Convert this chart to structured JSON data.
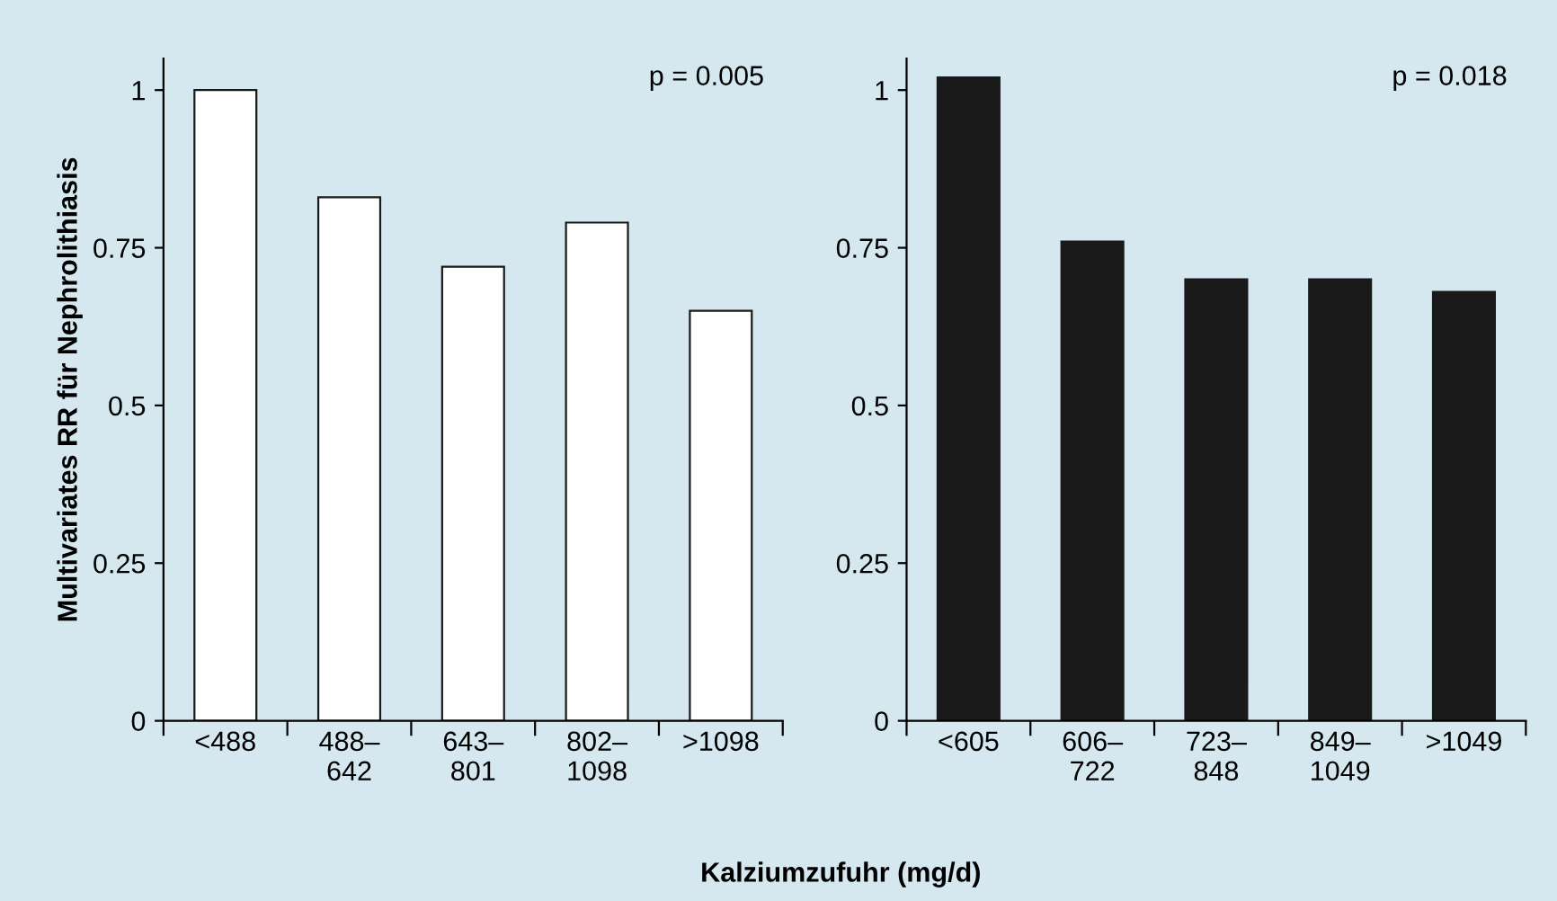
{
  "chart_data": [
    {
      "type": "bar",
      "ylabel": "Multivariates RR für Nephrolithiasis",
      "categories": [
        "<488",
        "488–\n642",
        "643–\n801",
        "802–\n1098",
        ">1098"
      ],
      "series": [
        {
          "color": "#ffffff",
          "values": [
            1.0,
            0.83,
            0.72,
            0.79,
            0.65
          ]
        }
      ],
      "ylim": [
        0,
        1.05
      ],
      "yticks": [
        0,
        0.25,
        0.5,
        0.75,
        1
      ],
      "grid": false,
      "legend": false,
      "annotations": [
        "p = 0.005"
      ]
    },
    {
      "type": "bar",
      "xlabel": "Kalziumzufuhr (mg/d)",
      "categories": [
        "<605",
        "606–\n722",
        "723–\n848",
        "849–\n1049",
        ">1049"
      ],
      "series": [
        {
          "color": "#1a1a1a",
          "values": [
            1.02,
            0.76,
            0.7,
            0.7,
            0.68
          ]
        }
      ],
      "ylim": [
        0,
        1.05
      ],
      "yticks": [
        0,
        0.25,
        0.5,
        0.75,
        1
      ],
      "grid": false,
      "legend": false,
      "annotations": [
        "p = 0.018"
      ]
    }
  ]
}
